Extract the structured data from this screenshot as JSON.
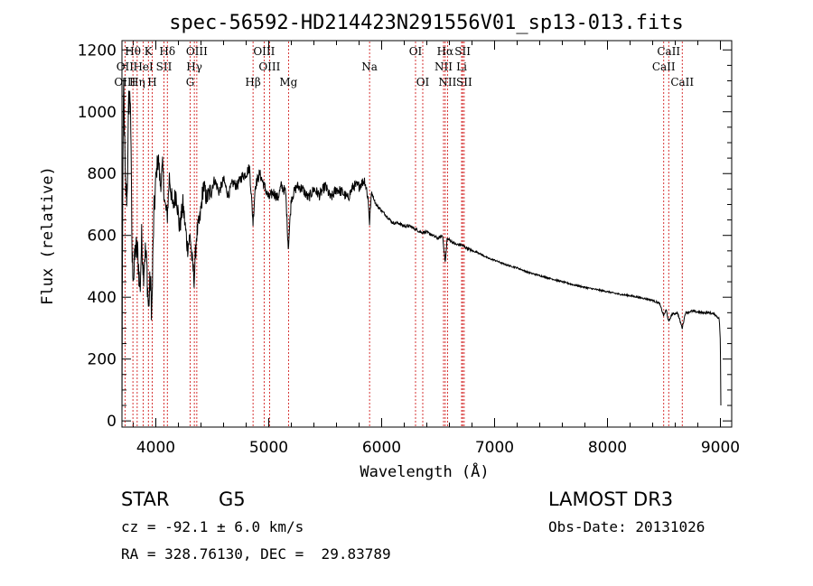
{
  "chart_data": {
    "type": "line",
    "title": "spec-56592-HD214423N291556V01_sp13-013.fits",
    "xlabel": "Wavelength (Å)",
    "ylabel": "Flux (relative)",
    "xlim": [
      3700,
      9100
    ],
    "ylim": [
      -20,
      1230
    ],
    "xticks": [
      4000,
      5000,
      6000,
      7000,
      8000,
      9000
    ],
    "yticks": [
      0,
      200,
      400,
      600,
      800,
      1000,
      1200
    ],
    "spectrum_anchor_points": [
      [
        3700,
        0
      ],
      [
        3705,
        650
      ],
      [
        3715,
        1090
      ],
      [
        3730,
        760
      ],
      [
        3745,
        720
      ],
      [
        3760,
        1030
      ],
      [
        3775,
        1050
      ],
      [
        3790,
        520
      ],
      [
        3805,
        470
      ],
      [
        3820,
        560
      ],
      [
        3840,
        540
      ],
      [
        3860,
        420
      ],
      [
        3875,
        600
      ],
      [
        3890,
        480
      ],
      [
        3905,
        550
      ],
      [
        3920,
        500
      ],
      [
        3935,
        360
      ],
      [
        3950,
        460
      ],
      [
        3965,
        350
      ],
      [
        3980,
        640
      ],
      [
        4000,
        780
      ],
      [
        4020,
        860
      ],
      [
        4040,
        760
      ],
      [
        4060,
        820
      ],
      [
        4080,
        700
      ],
      [
        4101,
        660
      ],
      [
        4120,
        790
      ],
      [
        4150,
        690
      ],
      [
        4180,
        740
      ],
      [
        4210,
        620
      ],
      [
        4240,
        700
      ],
      [
        4280,
        560
      ],
      [
        4305,
        600
      ],
      [
        4320,
        520
      ],
      [
        4340,
        460
      ],
      [
        4360,
        600
      ],
      [
        4390,
        650
      ],
      [
        4420,
        760
      ],
      [
        4450,
        720
      ],
      [
        4480,
        740
      ],
      [
        4520,
        780
      ],
      [
        4560,
        740
      ],
      [
        4600,
        780
      ],
      [
        4640,
        730
      ],
      [
        4680,
        770
      ],
      [
        4720,
        760
      ],
      [
        4760,
        790
      ],
      [
        4800,
        800
      ],
      [
        4830,
        820
      ],
      [
        4861,
        640
      ],
      [
        4880,
        760
      ],
      [
        4920,
        800
      ],
      [
        4960,
        760
      ],
      [
        5000,
        720
      ],
      [
        5040,
        740
      ],
      [
        5080,
        720
      ],
      [
        5110,
        760
      ],
      [
        5150,
        740
      ],
      [
        5173,
        560
      ],
      [
        5200,
        720
      ],
      [
        5250,
        760
      ],
      [
        5300,
        750
      ],
      [
        5350,
        720
      ],
      [
        5400,
        750
      ],
      [
        5450,
        730
      ],
      [
        5500,
        760
      ],
      [
        5550,
        720
      ],
      [
        5600,
        750
      ],
      [
        5650,
        740
      ],
      [
        5700,
        720
      ],
      [
        5750,
        760
      ],
      [
        5800,
        760
      ],
      [
        5850,
        780
      ],
      [
        5880,
        720
      ],
      [
        5893,
        640
      ],
      [
        5910,
        740
      ],
      [
        5950,
        700
      ],
      [
        6000,
        680
      ],
      [
        6050,
        660
      ],
      [
        6100,
        640
      ],
      [
        6150,
        640
      ],
      [
        6200,
        630
      ],
      [
        6250,
        630
      ],
      [
        6300,
        620
      ],
      [
        6350,
        610
      ],
      [
        6400,
        610
      ],
      [
        6450,
        600
      ],
      [
        6500,
        590
      ],
      [
        6540,
        600
      ],
      [
        6563,
        510
      ],
      [
        6580,
        590
      ],
      [
        6620,
        580
      ],
      [
        6660,
        570
      ],
      [
        6700,
        570
      ],
      [
        6750,
        560
      ],
      [
        6800,
        550
      ],
      [
        6850,
        545
      ],
      [
        6900,
        535
      ],
      [
        6950,
        525
      ],
      [
        7000,
        520
      ],
      [
        7100,
        505
      ],
      [
        7200,
        495
      ],
      [
        7300,
        480
      ],
      [
        7400,
        470
      ],
      [
        7500,
        460
      ],
      [
        7600,
        450
      ],
      [
        7700,
        440
      ],
      [
        7800,
        432
      ],
      [
        7900,
        425
      ],
      [
        8000,
        418
      ],
      [
        8100,
        410
      ],
      [
        8200,
        405
      ],
      [
        8300,
        398
      ],
      [
        8400,
        390
      ],
      [
        8460,
        380
      ],
      [
        8498,
        340
      ],
      [
        8520,
        360
      ],
      [
        8542,
        320
      ],
      [
        8570,
        345
      ],
      [
        8620,
        350
      ],
      [
        8662,
        300
      ],
      [
        8690,
        350
      ],
      [
        8750,
        355
      ],
      [
        8800,
        352
      ],
      [
        8850,
        350
      ],
      [
        8900,
        350
      ],
      [
        8950,
        345
      ],
      [
        8990,
        330
      ],
      [
        9000,
        250
      ],
      [
        9005,
        0
      ]
    ],
    "line_labels": [
      {
        "label": "Hθ",
        "row": 1,
        "wavelength": 3797
      },
      {
        "label": "K",
        "row": 1,
        "wavelength": 3934
      },
      {
        "label": "Hδ",
        "row": 1,
        "wavelength": 4102
      },
      {
        "label": "OIII",
        "row": 1,
        "wavelength": 4363
      },
      {
        "label": "OIII",
        "row": 1,
        "wavelength": 4959
      },
      {
        "label": "OI",
        "row": 1,
        "wavelength": 6300
      },
      {
        "label": "Hα",
        "row": 1,
        "wavelength": 6563
      },
      {
        "label": "SII",
        "row": 1,
        "wavelength": 6717
      },
      {
        "label": "CaII",
        "row": 1,
        "wavelength": 8542
      },
      {
        "label": "OII",
        "row": 2,
        "wavelength": 3727
      },
      {
        "label": "HeI",
        "row": 2,
        "wavelength": 3889
      },
      {
        "label": "SII",
        "row": 2,
        "wavelength": 4072
      },
      {
        "label": "Hγ",
        "row": 2,
        "wavelength": 4341
      },
      {
        "label": "OIII",
        "row": 2,
        "wavelength": 5007
      },
      {
        "label": "Na",
        "row": 2,
        "wavelength": 5893
      },
      {
        "label": "NII",
        "row": 2,
        "wavelength": 6548
      },
      {
        "label": "Li",
        "row": 2,
        "wavelength": 6708
      },
      {
        "label": "CaII",
        "row": 2,
        "wavelength": 8498
      },
      {
        "label": "OIII",
        "row": 3,
        "wavelength": 3727
      },
      {
        "label": "Hη",
        "row": 3,
        "wavelength": 3835
      },
      {
        "label": "H",
        "row": 3,
        "wavelength": 3968
      },
      {
        "label": "G",
        "row": 3,
        "wavelength": 4304
      },
      {
        "label": "Hβ",
        "row": 3,
        "wavelength": 4861
      },
      {
        "label": "Mg",
        "row": 3,
        "wavelength": 5175
      },
      {
        "label": "OI",
        "row": 3,
        "wavelength": 6364
      },
      {
        "label": "NII",
        "row": 3,
        "wavelength": 6583
      },
      {
        "label": "SII",
        "row": 3,
        "wavelength": 6731
      },
      {
        "label": "CaII",
        "row": 3,
        "wavelength": 8662
      }
    ],
    "marker_lines": [
      3727,
      3797,
      3835,
      3889,
      3934,
      3968,
      4072,
      4102,
      4304,
      4341,
      4363,
      4861,
      4959,
      5007,
      5175,
      5893,
      6300,
      6364,
      6548,
      6563,
      6583,
      6708,
      6717,
      6731,
      8498,
      8542,
      8662
    ]
  },
  "info": {
    "object_class": "STAR",
    "subclass": "G5",
    "survey": "LAMOST DR3",
    "redshift": "cz = -92.1 ± 6.0 km/s",
    "obs_date": "Obs-Date: 20131026",
    "coords": "RA = 328.76130, DEC =  29.83789"
  },
  "colors": {
    "spectrum": "#000000",
    "marker": "#cc0000",
    "axes": "#000000",
    "background": "#ffffff"
  }
}
